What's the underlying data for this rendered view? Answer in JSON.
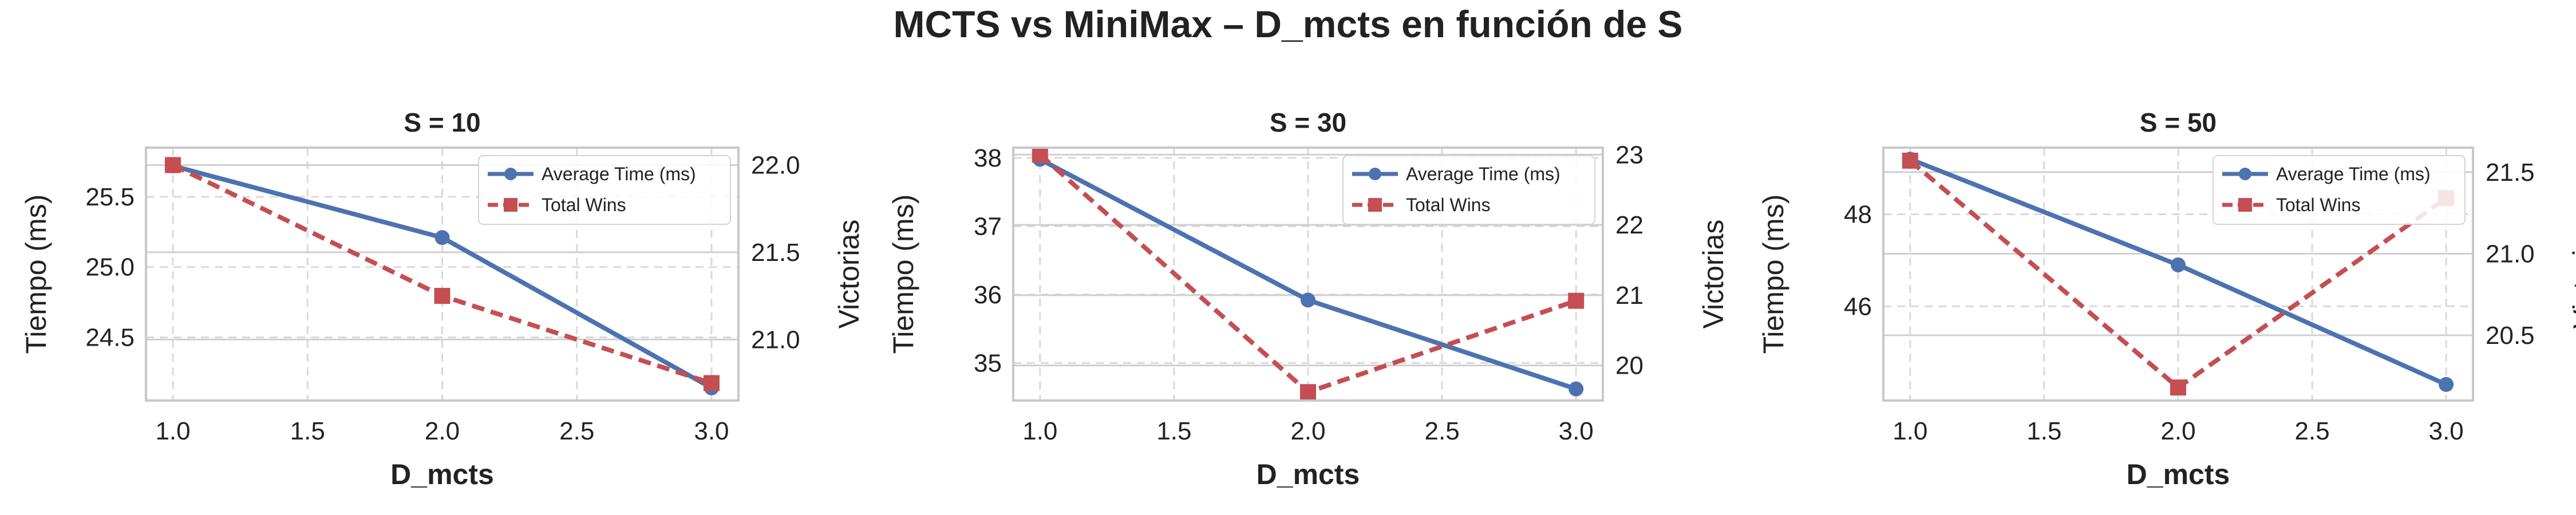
{
  "title": "MCTS vs MiniMax – D_mcts en función de S",
  "colors": {
    "time": "#4c72b0",
    "wins": "#c44e52",
    "grid": "#d9d9d9",
    "spine": "#c8c8c8"
  },
  "chart_data": [
    {
      "type": "line",
      "title": "S = 10",
      "xlabel": "D_mcts",
      "ylabel_left": "Tiempo (ms)",
      "ylabel_right": "Victorias",
      "x": [
        1.0,
        2.0,
        3.0
      ],
      "xlim": [
        0.9,
        3.1
      ],
      "x_ticks": [
        "1.0",
        "1.5",
        "2.0",
        "2.5",
        "3.0"
      ],
      "ylim_left": [
        24.05,
        25.85
      ],
      "ylim_right": [
        20.65,
        22.1
      ],
      "y_ticks_left": [
        "24.5",
        "25.0",
        "25.5"
      ],
      "y_ticks_right": [
        "21.0",
        "21.5",
        "22.0"
      ],
      "grid": true,
      "legend": "upper right",
      "series": [
        {
          "name": "Average Time (ms)",
          "axis": "left",
          "style": "solid",
          "marker": "circle",
          "values": [
            25.72,
            25.21,
            24.14
          ]
        },
        {
          "name": "Total Wins",
          "axis": "right",
          "style": "dashed",
          "marker": "square",
          "values": [
            22.0,
            21.25,
            20.75
          ]
        }
      ]
    },
    {
      "type": "line",
      "title": "S = 30",
      "xlabel": "D_mcts",
      "ylabel_left": "Tiempo (ms)",
      "ylabel_right": "Victorias",
      "x": [
        1.0,
        2.0,
        3.0
      ],
      "xlim": [
        0.9,
        3.1
      ],
      "x_ticks": [
        "1.0",
        "1.5",
        "2.0",
        "2.5",
        "3.0"
      ],
      "ylim_left": [
        34.45,
        38.15
      ],
      "ylim_right": [
        19.5,
        23.1
      ],
      "y_ticks_left": [
        "35",
        "36",
        "37",
        "38"
      ],
      "y_ticks_right": [
        "20",
        "21",
        "22",
        "23"
      ],
      "grid": true,
      "legend": "upper right",
      "series": [
        {
          "name": "Average Time (ms)",
          "axis": "left",
          "style": "solid",
          "marker": "circle",
          "values": [
            37.98,
            35.92,
            34.62
          ]
        },
        {
          "name": "Total Wins",
          "axis": "right",
          "style": "dashed",
          "marker": "square",
          "values": [
            23.0,
            19.62,
            20.92
          ]
        }
      ]
    },
    {
      "type": "line",
      "title": "S = 50",
      "xlabel": "D_mcts",
      "ylabel_left": "Tiempo (ms)",
      "ylabel_right": "Victorias",
      "x": [
        1.0,
        2.0,
        3.0
      ],
      "xlim": [
        0.9,
        3.1
      ],
      "x_ticks": [
        "1.0",
        "1.5",
        "2.0",
        "2.5",
        "3.0"
      ],
      "ylim_left": [
        43.95,
        49.45
      ],
      "ylim_right": [
        20.1,
        21.65
      ],
      "y_ticks_left": [
        "46",
        "48"
      ],
      "y_ticks_right": [
        "20.5",
        "21.0",
        "21.5"
      ],
      "grid": true,
      "legend": "upper right",
      "series": [
        {
          "name": "Average Time (ms)",
          "axis": "left",
          "style": "solid",
          "marker": "circle",
          "values": [
            49.2,
            46.9,
            44.3
          ]
        },
        {
          "name": "Total Wins",
          "axis": "right",
          "style": "dashed",
          "marker": "square",
          "values": [
            21.57,
            20.18,
            21.34
          ]
        }
      ]
    }
  ]
}
